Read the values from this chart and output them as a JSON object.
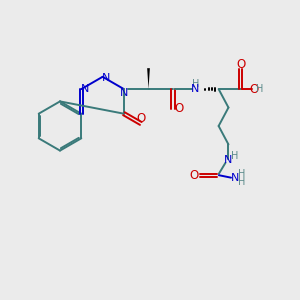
{
  "background_color": "#ebebeb",
  "bond_color": "#3a7a7a",
  "N_color": "#0000cc",
  "O_color": "#cc0000",
  "H_color": "#5a8a8a",
  "C_color": "#000000",
  "figsize": [
    3.0,
    3.0
  ],
  "dpi": 100,
  "xlim": [
    0,
    10
  ],
  "ylim": [
    0,
    10
  ],
  "bond_lw": 1.4,
  "font_size": 7.5
}
